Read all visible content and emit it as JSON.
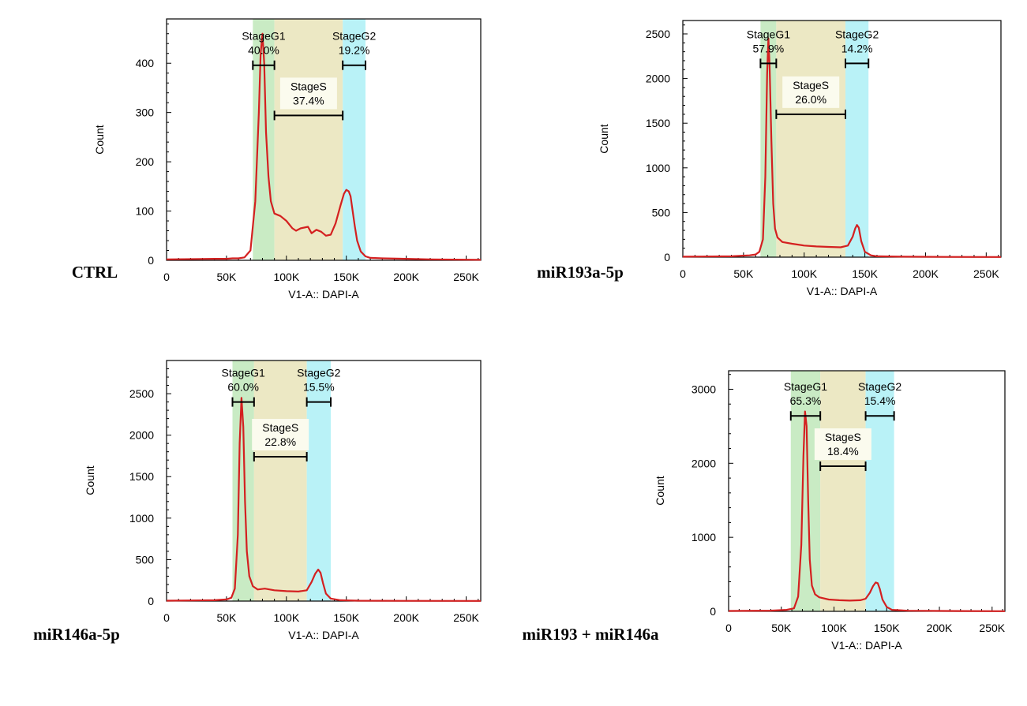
{
  "chart_data": [
    {
      "type": "histogram",
      "condition": "CTRL",
      "xlabel": "V1-A:: DAPI-A",
      "ylabel": "Count",
      "xlim": [
        0,
        262144
      ],
      "ylim": [
        0,
        490
      ],
      "xticks": [
        0,
        50000,
        100000,
        150000,
        200000,
        250000
      ],
      "xtick_labels": [
        "0",
        "50K",
        "100K",
        "150K",
        "200K",
        "250K"
      ],
      "yticks": [
        0,
        100,
        200,
        300,
        400
      ],
      "ytick_labels": [
        "0",
        "100",
        "200",
        "300",
        "400"
      ],
      "gates": [
        {
          "name": "StageG1",
          "label": "StageG1",
          "percent": "40.0%",
          "from": 72000,
          "to": 90000,
          "bar_y": 396
        },
        {
          "name": "StageS",
          "label": "StageS",
          "percent": "37.4%",
          "from": 90000,
          "to": 147000,
          "bar_y": 294
        },
        {
          "name": "StageG2",
          "label": "StageG2",
          "percent": "19.2%",
          "from": 147000,
          "to": 166000,
          "bar_y": 396
        }
      ],
      "series": {
        "name": "DAPI histogram",
        "x": [
          0,
          40000,
          50000,
          55000,
          60000,
          65000,
          70000,
          74000,
          77000,
          78500,
          80000,
          81500,
          83000,
          85000,
          87000,
          90000,
          95000,
          100000,
          105000,
          108000,
          112000,
          118000,
          121000,
          125000,
          129000,
          133000,
          137000,
          141000,
          145000,
          148000,
          150000,
          152000,
          153500,
          155000,
          157000,
          159000,
          162000,
          166000,
          170000,
          180000,
          200000,
          220000,
          262144
        ],
        "y": [
          2,
          3,
          3,
          4,
          4,
          6,
          20,
          120,
          300,
          420,
          460,
          400,
          260,
          170,
          120,
          95,
          90,
          80,
          65,
          60,
          65,
          68,
          55,
          62,
          58,
          50,
          52,
          75,
          110,
          135,
          143,
          140,
          130,
          105,
          70,
          40,
          18,
          8,
          5,
          4,
          3,
          2,
          1
        ]
      }
    },
    {
      "type": "histogram",
      "condition": "miR193a-5p",
      "xlabel": "V1-A:: DAPI-A",
      "ylabel": "Count",
      "xlim": [
        0,
        262144
      ],
      "ylim": [
        0,
        2650
      ],
      "xticks": [
        0,
        50000,
        100000,
        150000,
        200000,
        250000
      ],
      "xtick_labels": [
        "0",
        "50K",
        "100K",
        "150K",
        "200K",
        "250K"
      ],
      "yticks": [
        0,
        500,
        1000,
        1500,
        2000,
        2500
      ],
      "ytick_labels": [
        "0",
        "500",
        "1000",
        "1500",
        "2000",
        "2500"
      ],
      "gates": [
        {
          "name": "StageG1",
          "label": "StageG1",
          "percent": "57.9%",
          "from": 64000,
          "to": 77000,
          "bar_y": 2170
        },
        {
          "name": "StageS",
          "label": "StageS",
          "percent": "26.0%",
          "from": 77000,
          "to": 134000,
          "bar_y": 1600
        },
        {
          "name": "StageG2",
          "label": "StageG2",
          "percent": "14.2%",
          "from": 134000,
          "to": 153000,
          "bar_y": 2170
        }
      ],
      "series": {
        "name": "DAPI histogram",
        "x": [
          0,
          40000,
          55000,
          60000,
          63000,
          66000,
          68000,
          69500,
          70500,
          71500,
          73000,
          74500,
          76000,
          78000,
          82000,
          90000,
          100000,
          110000,
          120000,
          130000,
          136000,
          140000,
          142000,
          143500,
          145000,
          147000,
          150000,
          155000,
          160000,
          180000,
          220000,
          262144
        ],
        "y": [
          5,
          10,
          20,
          30,
          60,
          200,
          900,
          2050,
          2450,
          2150,
          1300,
          600,
          320,
          220,
          170,
          150,
          130,
          120,
          115,
          110,
          130,
          230,
          320,
          360,
          330,
          180,
          60,
          20,
          10,
          5,
          3,
          2
        ]
      }
    },
    {
      "type": "histogram",
      "condition": "miR146a-5p",
      "xlabel": "V1-A:: DAPI-A",
      "ylabel": "Count",
      "xlim": [
        0,
        262144
      ],
      "ylim": [
        0,
        2900
      ],
      "xticks": [
        0,
        50000,
        100000,
        150000,
        200000,
        250000
      ],
      "xtick_labels": [
        "0",
        "50K",
        "100K",
        "150K",
        "200K",
        "250K"
      ],
      "yticks": [
        0,
        500,
        1000,
        1500,
        2000,
        2500
      ],
      "ytick_labels": [
        "0",
        "500",
        "1000",
        "1500",
        "2000",
        "2500"
      ],
      "gates": [
        {
          "name": "StageG1",
          "label": "StageG1",
          "percent": "60.0%",
          "from": 55000,
          "to": 73000,
          "bar_y": 2400
        },
        {
          "name": "StageS",
          "label": "StageS",
          "percent": "22.8%",
          "from": 73000,
          "to": 117000,
          "bar_y": 1740
        },
        {
          "name": "StageG2",
          "label": "StageG2",
          "percent": "15.5%",
          "from": 117000,
          "to": 137000,
          "bar_y": 2400
        }
      ],
      "series": {
        "name": "DAPI histogram",
        "x": [
          0,
          40000,
          50000,
          54000,
          57000,
          59500,
          61000,
          62500,
          64000,
          65500,
          67000,
          69000,
          72000,
          76000,
          82000,
          90000,
          100000,
          110000,
          117000,
          121000,
          124000,
          126500,
          128500,
          130500,
          133000,
          137000,
          145000,
          160000,
          200000,
          262144
        ],
        "y": [
          5,
          10,
          20,
          40,
          150,
          800,
          1900,
          2450,
          2100,
          1200,
          600,
          300,
          180,
          140,
          150,
          130,
          120,
          115,
          130,
          230,
          330,
          380,
          340,
          220,
          90,
          30,
          10,
          5,
          3,
          2
        ]
      }
    },
    {
      "type": "histogram",
      "condition": "miR193 + miR146a",
      "xlabel": "V1-A:: DAPI-A",
      "ylabel": "Count",
      "xlim": [
        0,
        262144
      ],
      "ylim": [
        0,
        3250
      ],
      "xticks": [
        0,
        50000,
        100000,
        150000,
        200000,
        250000
      ],
      "xtick_labels": [
        "0",
        "50K",
        "100K",
        "150K",
        "200K",
        "250K"
      ],
      "yticks": [
        0,
        1000,
        2000,
        3000
      ],
      "ytick_labels": [
        "0",
        "1000",
        "2000",
        "3000"
      ],
      "gates": [
        {
          "name": "StageG1",
          "label": "StageG1",
          "percent": "65.3%",
          "from": 59000,
          "to": 87000,
          "bar_y": 2640
        },
        {
          "name": "StageS",
          "label": "StageS",
          "percent": "18.4%",
          "from": 87000,
          "to": 130000,
          "bar_y": 1960
        },
        {
          "name": "StageG2",
          "label": "StageG2",
          "percent": "15.4%",
          "from": 130000,
          "to": 157000,
          "bar_y": 2640
        }
      ],
      "series": {
        "name": "DAPI histogram",
        "x": [
          0,
          40000,
          55000,
          62000,
          66000,
          69000,
          71000,
          72500,
          74000,
          75500,
          77000,
          79000,
          82000,
          86000,
          95000,
          105000,
          115000,
          125000,
          130000,
          134000,
          137000,
          139500,
          141500,
          143500,
          146000,
          150000,
          155000,
          170000,
          220000,
          262144
        ],
        "y": [
          5,
          10,
          20,
          40,
          200,
          900,
          2100,
          2700,
          2500,
          1500,
          700,
          350,
          230,
          190,
          160,
          150,
          145,
          150,
          170,
          250,
          340,
          390,
          380,
          300,
          160,
          60,
          20,
          8,
          4,
          2
        ]
      }
    }
  ],
  "colors": {
    "g1_band": "#c9ebc4",
    "s_band": "#ece8c4",
    "g2_band": "#b9f2f7",
    "curve": "#d42020",
    "gate_bar": "#000000"
  }
}
